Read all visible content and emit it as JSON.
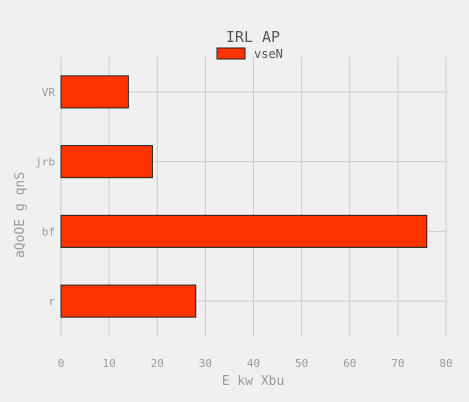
{
  "chart_data": {
    "type": "bar",
    "orientation": "horizontal",
    "title": "IRL AP",
    "xlabel": "E kw Xbu",
    "ylabel": "aQoOE g qnS",
    "categories": [
      "VR",
      "jrb",
      "bf",
      "r"
    ],
    "series": [
      {
        "name": "vseN",
        "values": [
          14,
          19,
          76,
          28
        ],
        "color": "#ff3300"
      }
    ],
    "xlim": [
      0,
      80
    ],
    "xticks": [
      0,
      10,
      20,
      30,
      40,
      50,
      60,
      70,
      80
    ],
    "grid": true,
    "legend_position": "top-center"
  }
}
